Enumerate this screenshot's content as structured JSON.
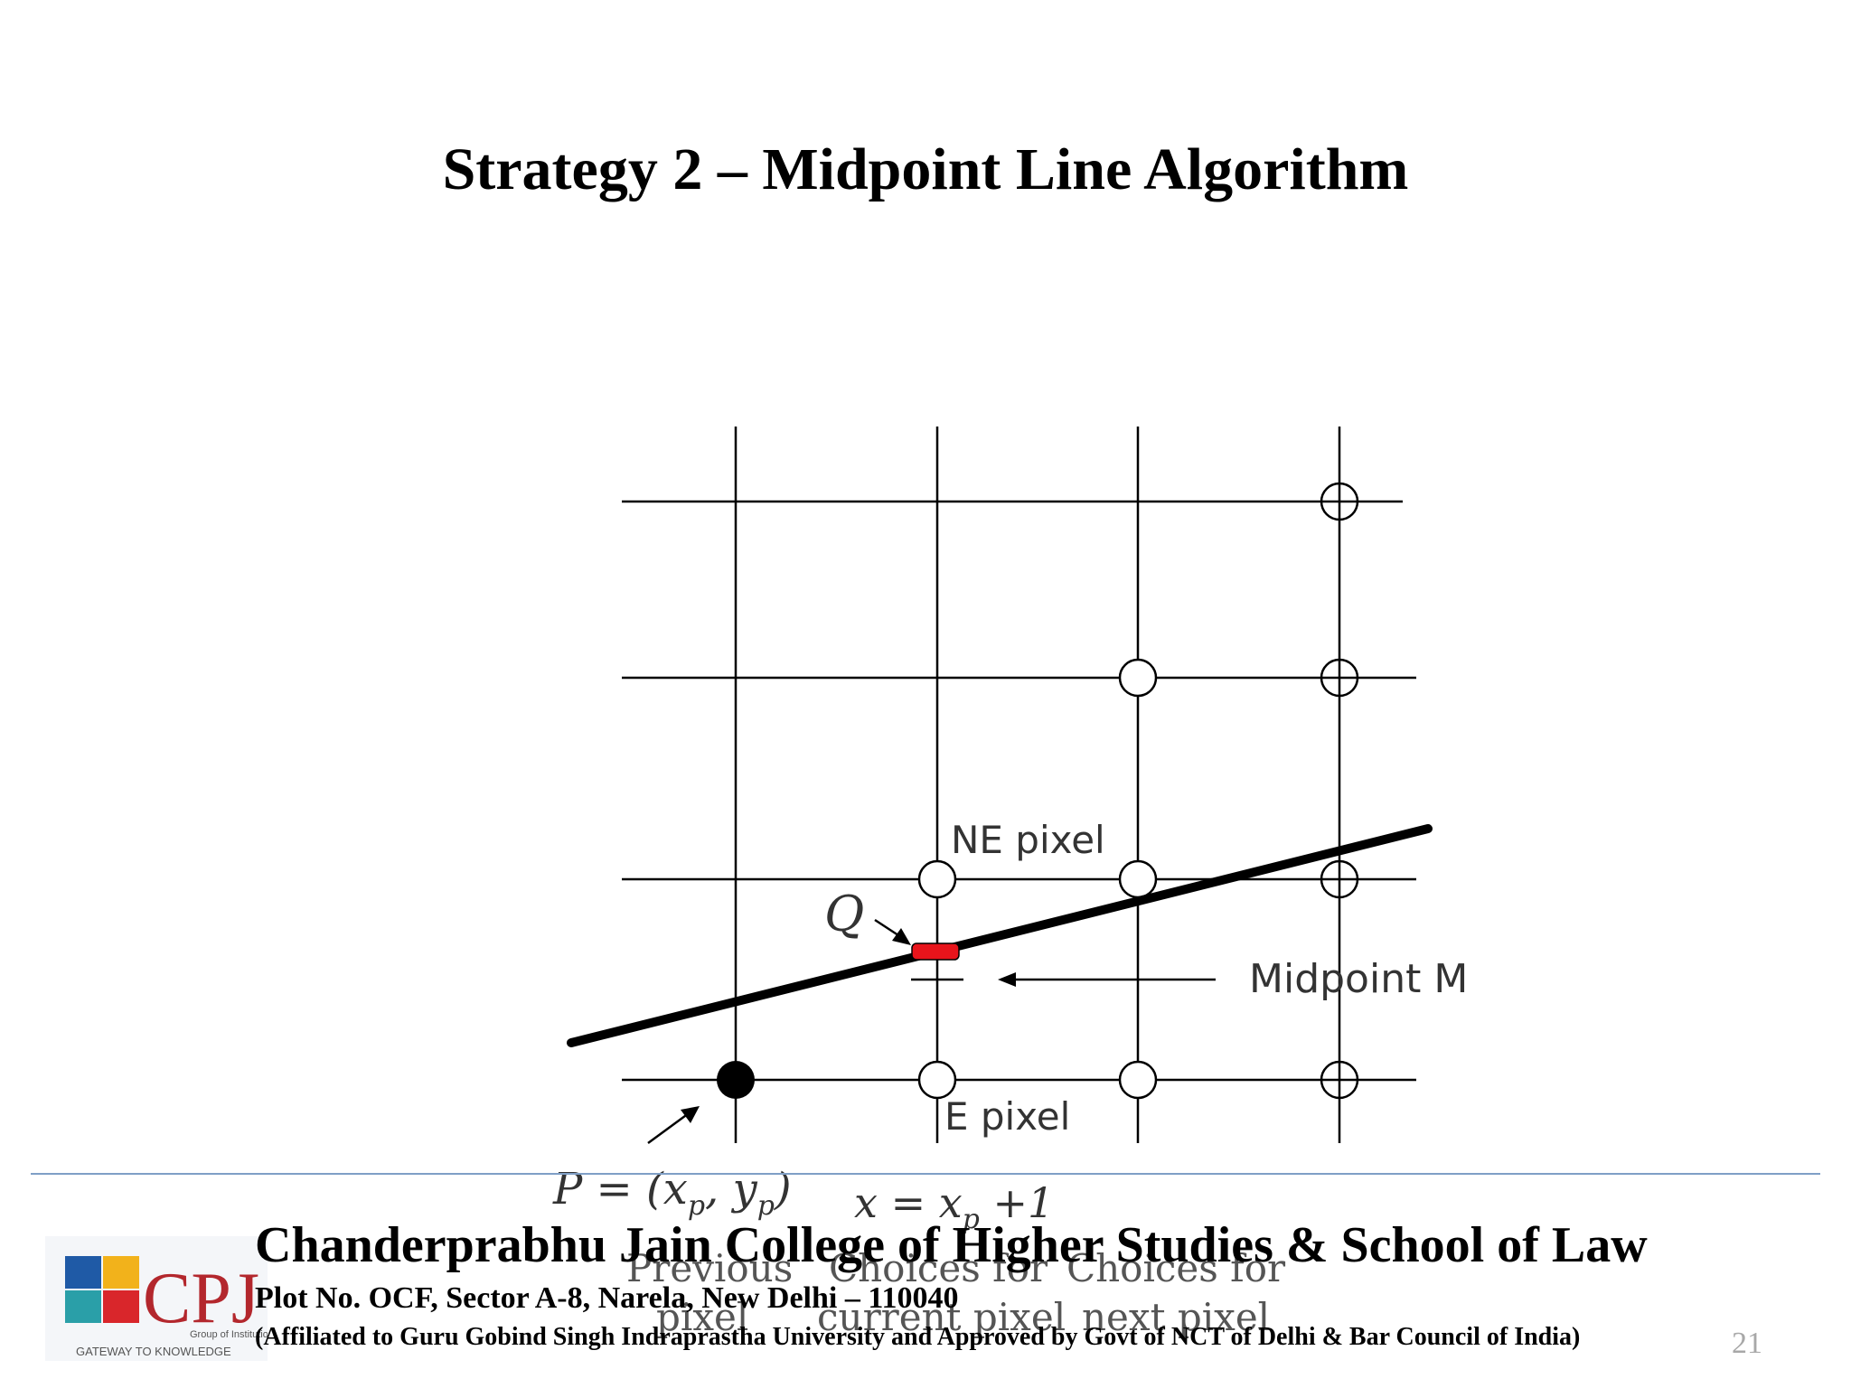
{
  "slide": {
    "title": "Strategy 2 – Midpoint Line Algorithm",
    "slide_number": "21"
  },
  "diagram": {
    "labels": {
      "ne_pixel": "NE pixel",
      "e_pixel": "E pixel",
      "q": "Q",
      "midpoint": "Midpoint M",
      "p_point": "P = (x",
      "p_sub": "p",
      "p_comma": ", y",
      "p_close": ")",
      "x_eq": "x = x",
      "x_plus": " +1",
      "col_previous_1": "Previous",
      "col_previous_2": "pixel",
      "col_current_1": "Choices for",
      "col_current_2": "current pixel",
      "col_next_1": "Choices for",
      "col_next_2": "next pixel"
    },
    "colors": {
      "line": "#000000",
      "q_marker": "#e8141b",
      "grid": "#000000"
    }
  },
  "footer": {
    "college_name": "Chanderprabhu Jain College of Higher Studies & School of Law",
    "address": "Plot No. OCF, Sector A-8, Narela, New Delhi – 110040",
    "affiliation": "(Affiliated to Guru Gobind Singh Indraprastha University and Approved by Govt of NCT of Delhi & Bar Council of India)",
    "logo": {
      "tagline": "Group of Institutions",
      "motto": "GATEWAY TO KNOWLEDGE",
      "initials": "CPJ"
    }
  }
}
